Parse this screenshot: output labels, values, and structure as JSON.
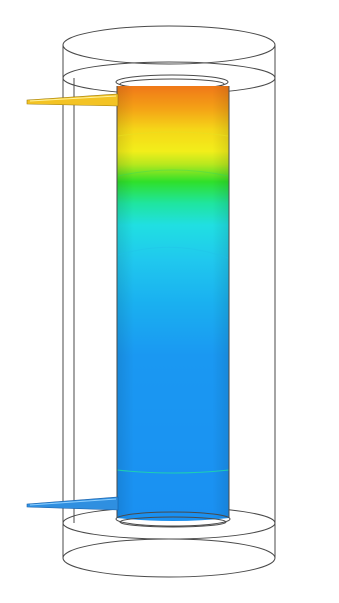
{
  "figure": {
    "kind": "cfd-temperature-contour",
    "colors": {
      "background": "#ffffff",
      "wireframe": "#4a4a4a",
      "inlet_pipe": "#2f8fe0",
      "outlet_pipe": "#f3c324",
      "contour_hot": "#f07818",
      "contour_mid": "#2fe02a",
      "contour_cool": "#20c8ee",
      "contour_cold": "#1a90f2"
    },
    "contour_stops": [
      {
        "offset": 0.0,
        "color": "#f07818"
      },
      {
        "offset": 0.05,
        "color": "#f4a016"
      },
      {
        "offset": 0.1,
        "color": "#f5d618"
      },
      {
        "offset": 0.15,
        "color": "#f2ee1a"
      },
      {
        "offset": 0.18,
        "color": "#b8e81e"
      },
      {
        "offset": 0.22,
        "color": "#2fe02a"
      },
      {
        "offset": 0.27,
        "color": "#1fe5a0"
      },
      {
        "offset": 0.32,
        "color": "#20dfe2"
      },
      {
        "offset": 0.4,
        "color": "#20c8ee"
      },
      {
        "offset": 0.5,
        "color": "#1ab0f0"
      },
      {
        "offset": 0.62,
        "color": "#1a98f2"
      },
      {
        "offset": 1.0,
        "color": "#1a90f2"
      }
    ]
  }
}
